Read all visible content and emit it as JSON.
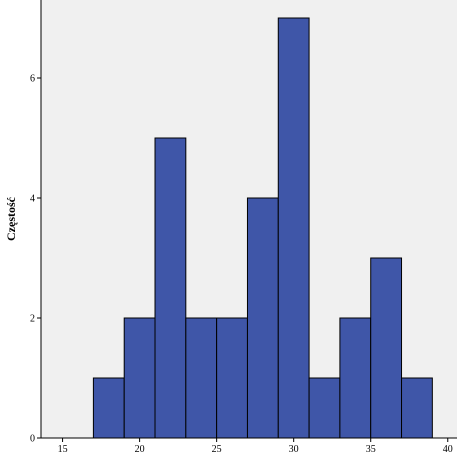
{
  "chart_data": {
    "type": "bar",
    "title": "",
    "xlabel": "",
    "ylabel": "Częstość",
    "bin_width": 2,
    "bins": [
      {
        "start": 17,
        "end": 19,
        "count": 1
      },
      {
        "start": 19,
        "end": 21,
        "count": 2
      },
      {
        "start": 21,
        "end": 23,
        "count": 5
      },
      {
        "start": 23,
        "end": 25,
        "count": 2
      },
      {
        "start": 25,
        "end": 27,
        "count": 2
      },
      {
        "start": 27,
        "end": 29,
        "count": 4
      },
      {
        "start": 29,
        "end": 31,
        "count": 7
      },
      {
        "start": 31,
        "end": 33,
        "count": 1
      },
      {
        "start": 33,
        "end": 35,
        "count": 2
      },
      {
        "start": 35,
        "end": 37,
        "count": 3
      },
      {
        "start": 37,
        "end": 39,
        "count": 1
      }
    ],
    "xlim": [
      13.6,
      40.6
    ],
    "ylim": [
      0,
      7.3
    ],
    "x_ticks": [
      15,
      20,
      25,
      30,
      35,
      40
    ],
    "y_ticks": [
      0,
      2,
      4,
      6
    ],
    "grid": false,
    "colors": {
      "plot_background": "#f0f0f0",
      "bar_fill": "#3f56a8",
      "bar_stroke": "#000000"
    }
  }
}
